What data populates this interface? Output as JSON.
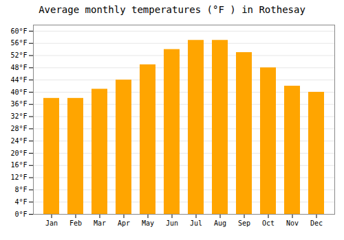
{
  "chart_data": {
    "type": "bar",
    "title": "Average monthly temperatures (°F ) in Rothesay",
    "categories": [
      "Jan",
      "Feb",
      "Mar",
      "Apr",
      "May",
      "Jun",
      "Jul",
      "Aug",
      "Sep",
      "Oct",
      "Nov",
      "Dec"
    ],
    "values": [
      38,
      38,
      41,
      44,
      49,
      54,
      57,
      57,
      53,
      48,
      42,
      40
    ],
    "color": "#FFA500",
    "ylim": [
      0,
      62
    ],
    "yticks": [
      {
        "value": 0,
        "label": "0°F"
      },
      {
        "value": 4,
        "label": "4°F"
      },
      {
        "value": 8,
        "label": "8°F"
      },
      {
        "value": 12,
        "label": "12°F"
      },
      {
        "value": 16,
        "label": "16°F"
      },
      {
        "value": 20,
        "label": "20°F"
      },
      {
        "value": 24,
        "label": "24°F"
      },
      {
        "value": 28,
        "label": "28°F"
      },
      {
        "value": 32,
        "label": "32°F"
      },
      {
        "value": 36,
        "label": "36°F"
      },
      {
        "value": 40,
        "label": "40°F"
      },
      {
        "value": 44,
        "label": "44°F"
      },
      {
        "value": 48,
        "label": "48°F"
      },
      {
        "value": 52,
        "label": "52°F"
      },
      {
        "value": 56,
        "label": "56°F"
      },
      {
        "value": 60,
        "label": "60°F"
      }
    ],
    "grid": true
  }
}
